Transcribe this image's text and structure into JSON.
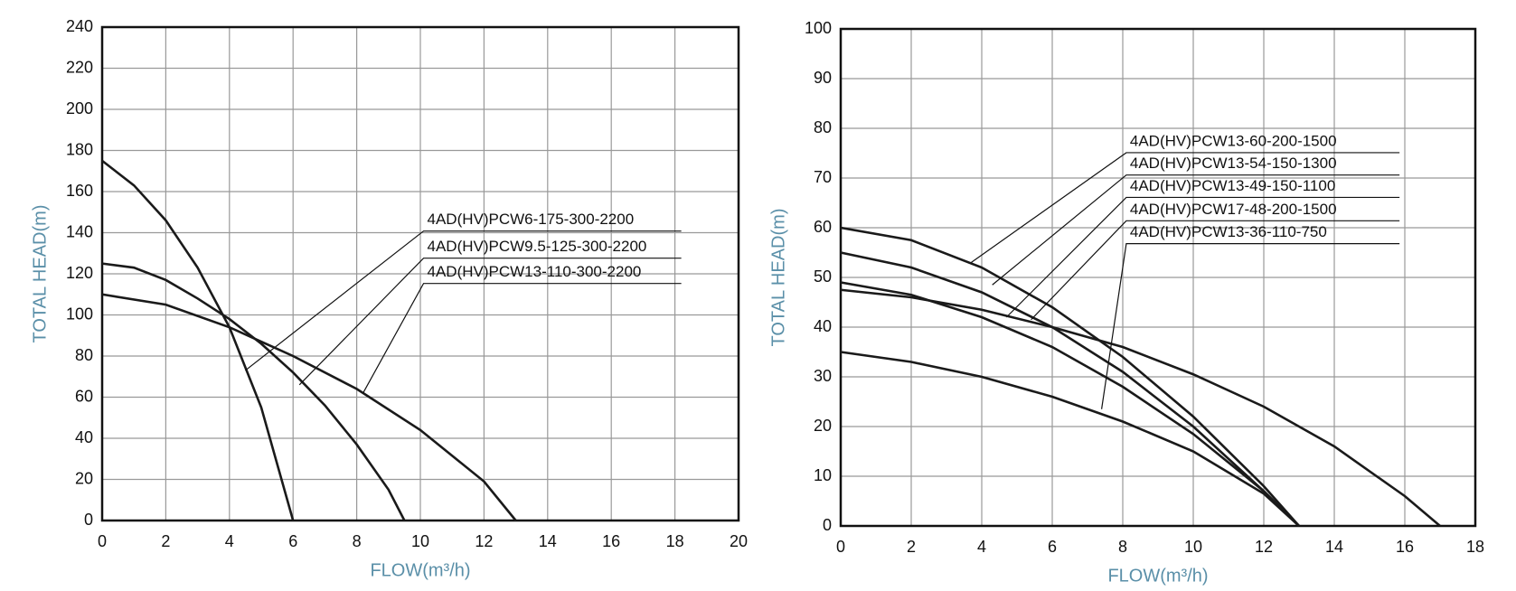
{
  "chart_data": [
    {
      "type": "line",
      "x_label": "FLOW(m³/h)",
      "y_label": "TOTAL HEAD(m)",
      "xlim": [
        0,
        20
      ],
      "ylim": [
        0,
        240
      ],
      "xticks": [
        0,
        2,
        4,
        6,
        8,
        10,
        12,
        14,
        16,
        18,
        20
      ],
      "yticks": [
        0,
        20,
        40,
        60,
        80,
        100,
        120,
        140,
        160,
        180,
        200,
        220,
        240
      ],
      "grid": true,
      "series": [
        {
          "name": "4AD(HV)PCW6-175-300-2200",
          "color": "#1a1a1a",
          "x": [
            0,
            1,
            2,
            3,
            4,
            5,
            6
          ],
          "values": [
            175,
            163,
            146,
            123,
            94,
            55,
            0
          ]
        },
        {
          "name": "4AD(HV)PCW9.5-125-300-2200",
          "color": "#1a1a1a",
          "x": [
            0,
            1,
            2,
            3,
            4,
            5,
            6,
            7,
            8,
            9,
            9.5
          ],
          "values": [
            125,
            123,
            117,
            108,
            98,
            86,
            72,
            56,
            37,
            15,
            0
          ]
        },
        {
          "name": "4AD(HV)PCW13-110-300-2200",
          "color": "#1a1a1a",
          "x": [
            0,
            2,
            4,
            6,
            8,
            10,
            12,
            13
          ],
          "values": [
            110,
            105,
            94,
            80,
            64,
            44,
            19,
            0
          ]
        }
      ]
    },
    {
      "type": "line",
      "x_label": "FLOW(m³/h)",
      "y_label": "TOTAL HEAD(m)",
      "xlim": [
        0,
        18
      ],
      "ylim": [
        0,
        100
      ],
      "xticks": [
        0,
        2,
        4,
        6,
        8,
        10,
        12,
        14,
        16,
        18
      ],
      "yticks": [
        0,
        10,
        20,
        30,
        40,
        50,
        60,
        70,
        80,
        90,
        100
      ],
      "grid": true,
      "series": [
        {
          "name": "4AD(HV)PCW13-60-200-1500",
          "color": "#1a1a1a",
          "x": [
            0,
            2,
            4,
            6,
            8,
            10,
            12,
            13
          ],
          "values": [
            60,
            57.5,
            52,
            44,
            34,
            22,
            8,
            0
          ]
        },
        {
          "name": "4AD(HV)PCW13-54-150-1300",
          "color": "#1a1a1a",
          "x": [
            0,
            2,
            4,
            6,
            8,
            10,
            12,
            13
          ],
          "values": [
            55,
            52,
            47,
            40,
            31,
            20,
            7,
            0
          ]
        },
        {
          "name": "4AD(HV)PCW13-49-150-1100",
          "color": "#1a1a1a",
          "x": [
            0,
            2,
            4,
            6,
            8,
            10,
            12,
            13
          ],
          "values": [
            49,
            46.5,
            42,
            36,
            28,
            18.5,
            7,
            0
          ]
        },
        {
          "name": "4AD(HV)PCW17-48-200-1500",
          "color": "#1a1a1a",
          "x": [
            0,
            2,
            4,
            6,
            8,
            10,
            12,
            14,
            16,
            17
          ],
          "values": [
            47.5,
            46,
            43.5,
            40,
            36,
            30.5,
            24,
            16,
            6,
            0
          ]
        },
        {
          "name": "4AD(HV)PCW13-36-110-750",
          "color": "#1a1a1a",
          "x": [
            0,
            2,
            4,
            6,
            8,
            10,
            12,
            13
          ],
          "values": [
            35,
            33,
            30,
            26,
            21,
            15,
            6.5,
            0
          ]
        }
      ]
    }
  ]
}
